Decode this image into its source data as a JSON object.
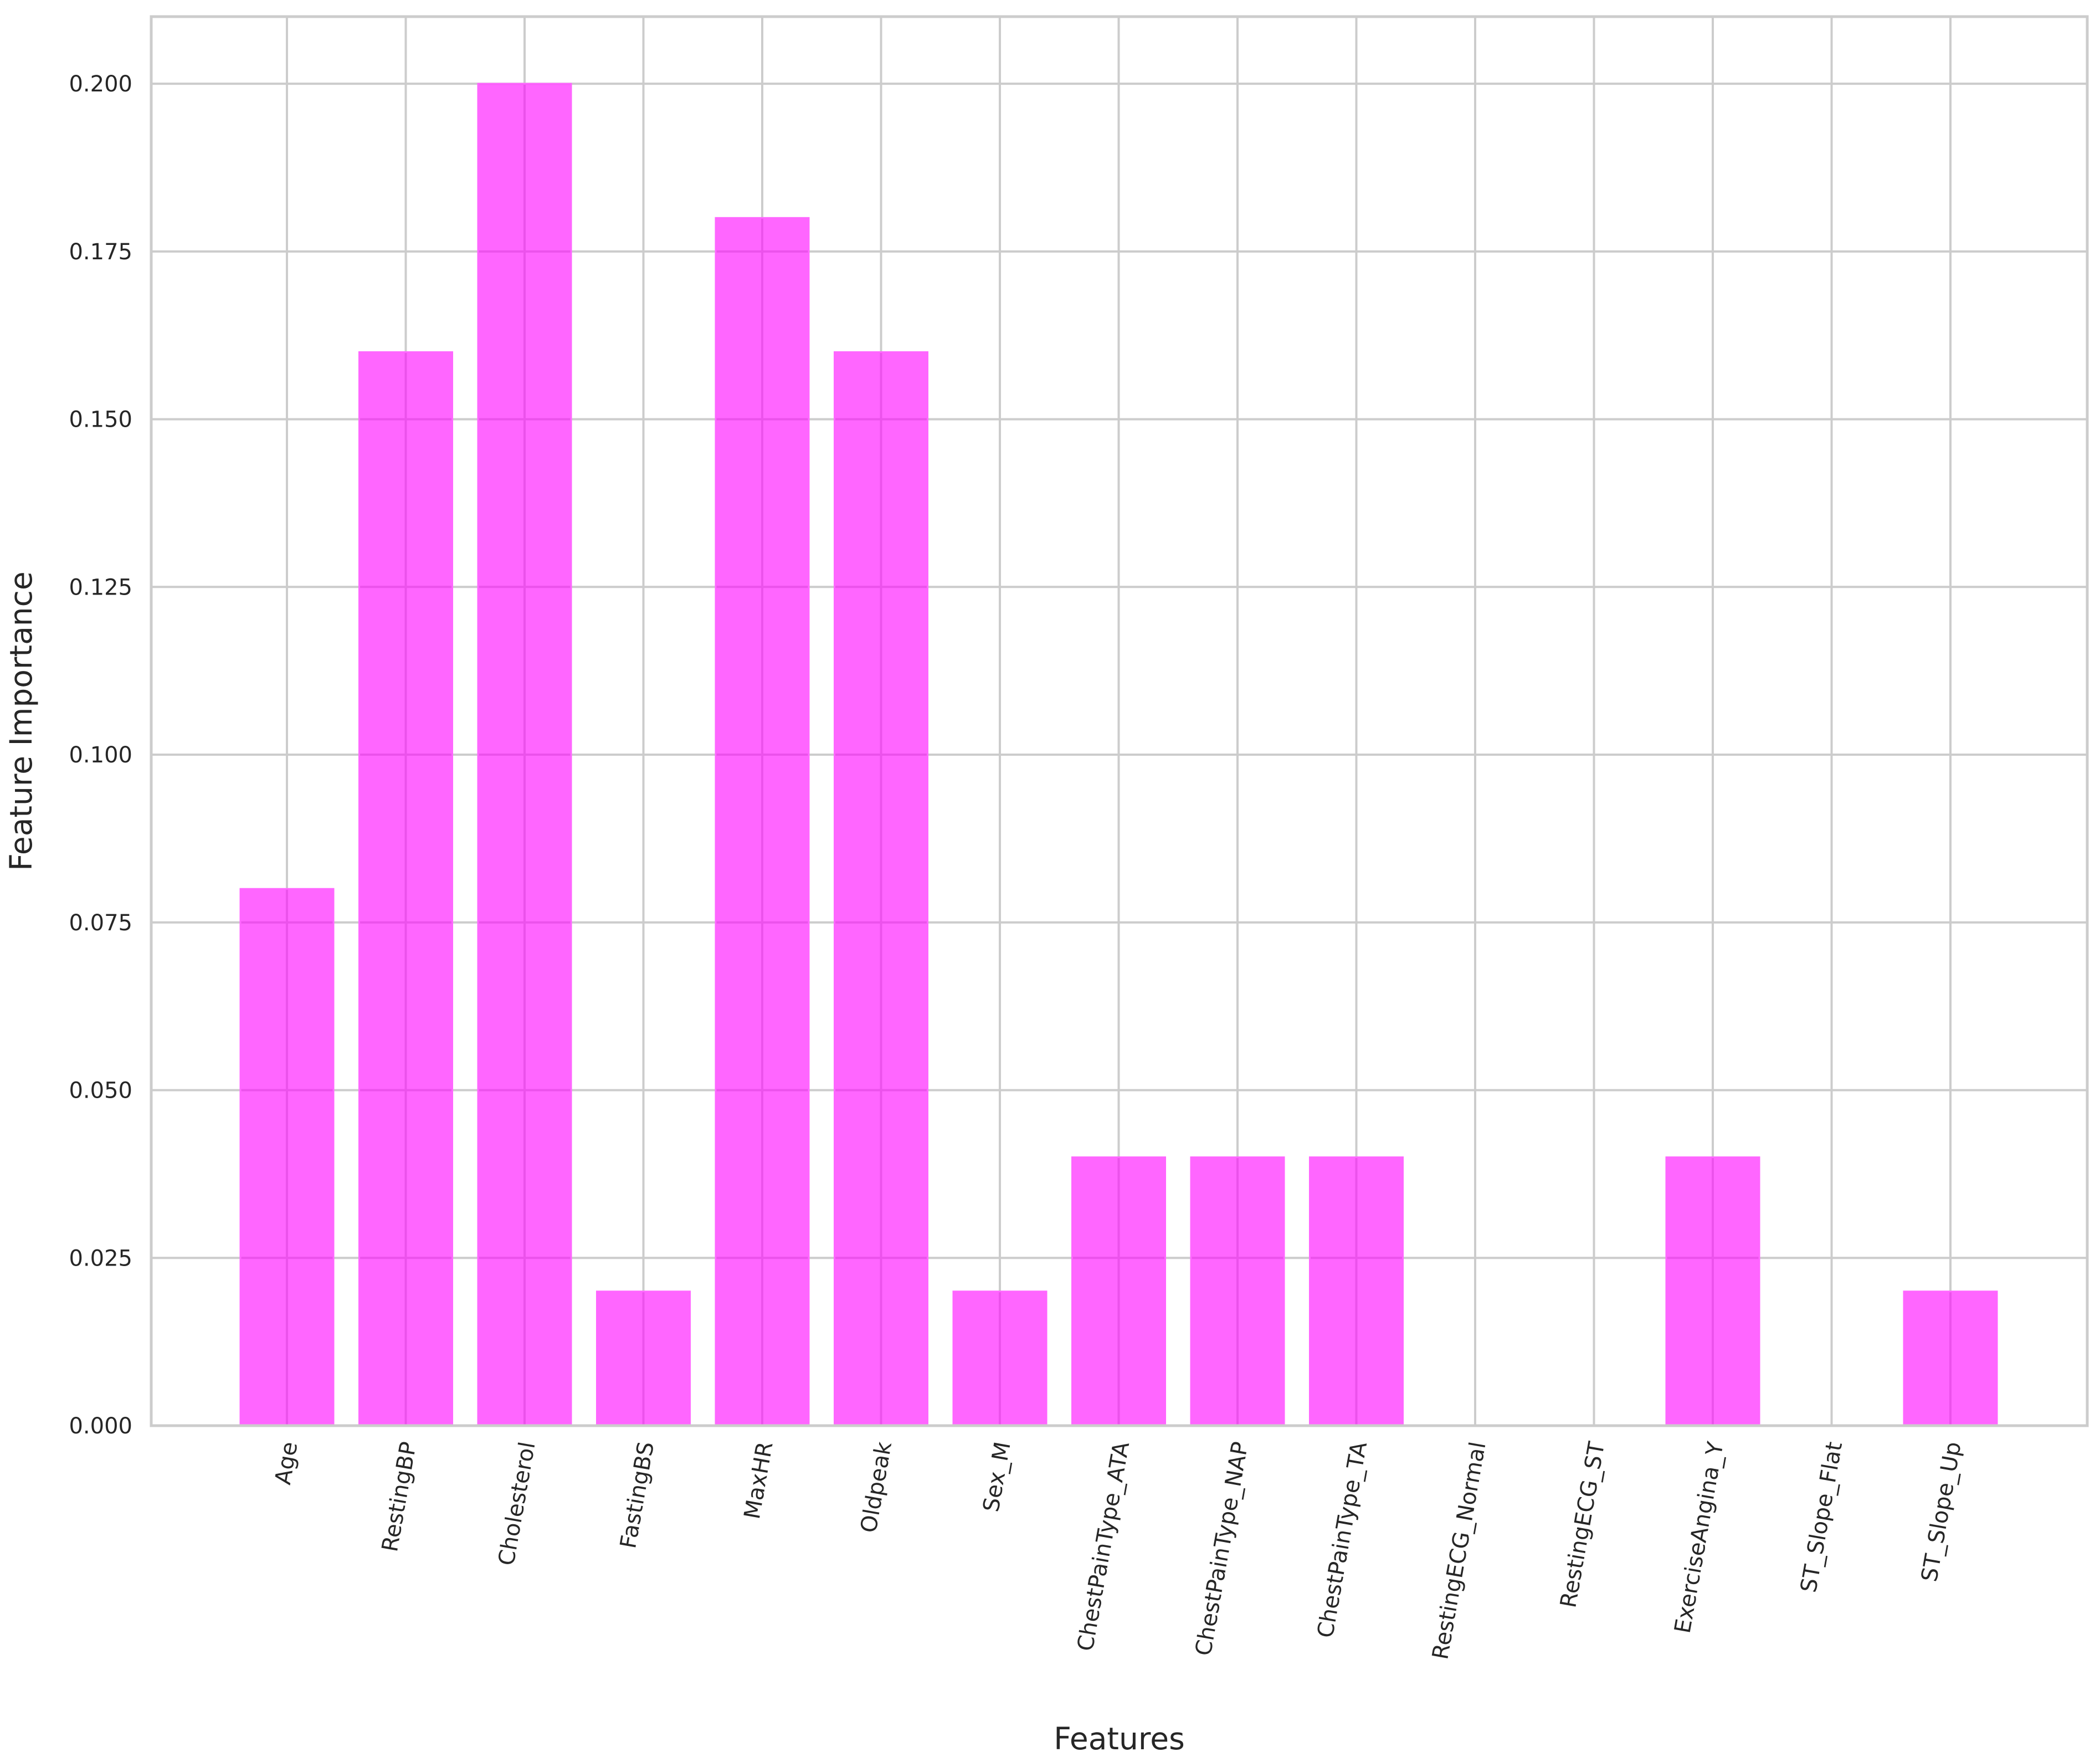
{
  "chart_data": {
    "type": "bar",
    "title": "",
    "xlabel": "Features",
    "ylabel": "Feature Importance",
    "categories": [
      "Age",
      "RestingBP",
      "Cholesterol",
      "FastingBS",
      "MaxHR",
      "Oldpeak",
      "Sex_M",
      "ChestPainType_ATA",
      "ChestPainType_NAP",
      "ChestPainType_TA",
      "RestingECG_Normal",
      "RestingECG_ST",
      "ExerciseAngina_Y",
      "ST_Slope_Flat",
      "ST_Slope_Up"
    ],
    "values": [
      0.08,
      0.16,
      0.2,
      0.02,
      0.18,
      0.16,
      0.02,
      0.04,
      0.04,
      0.04,
      0.0,
      0.0,
      0.04,
      0.0,
      0.02
    ],
    "ylim": [
      0,
      0.21
    ],
    "yticks": [
      "0.000",
      "0.025",
      "0.050",
      "0.075",
      "0.100",
      "0.125",
      "0.150",
      "0.175",
      "0.200"
    ],
    "grid": true,
    "bar_color": "#ff00ff",
    "bar_opacity": 0.6,
    "xtick_rotation_deg": 80
  }
}
